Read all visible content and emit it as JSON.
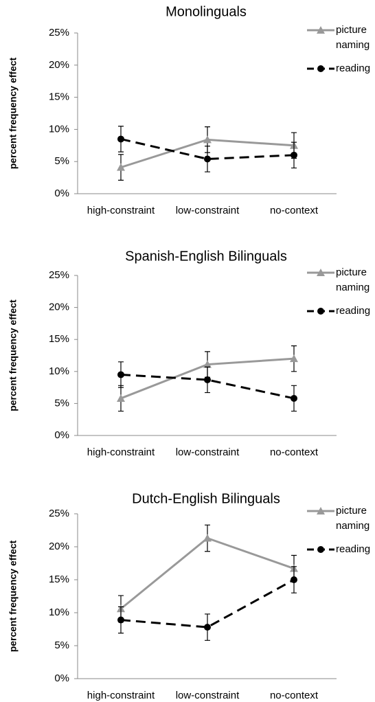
{
  "chart_data": [
    {
      "type": "line",
      "title": "Monolinguals",
      "y_label": "percent frequency effect",
      "categories": [
        "high-constraint",
        "low-constraint",
        "no-context"
      ],
      "ylim": [
        0,
        25
      ],
      "yticks": [
        {
          "value": 0,
          "label": "0%"
        },
        {
          "value": 5,
          "label": "5%"
        },
        {
          "value": 10,
          "label": "10%"
        },
        {
          "value": 15,
          "label": "15%"
        },
        {
          "value": 20,
          "label": "20%"
        },
        {
          "value": 25,
          "label": "25%"
        }
      ],
      "legend": "top-right",
      "series": [
        {
          "name": "picture naming",
          "color": "#999999",
          "marker": "triangle",
          "dashed": false,
          "values": [
            4.1,
            8.4,
            7.5
          ],
          "errors": [
            2,
            2,
            2
          ]
        },
        {
          "name": "reading",
          "color": "#000000",
          "marker": "circle",
          "dashed": true,
          "values": [
            8.5,
            5.4,
            6.0
          ],
          "errors": [
            2,
            2,
            2
          ]
        }
      ]
    },
    {
      "type": "line",
      "title": "Spanish-English Bilinguals",
      "y_label": "percent frequency effect",
      "categories": [
        "high-constraint",
        "low-constraint",
        "no-context"
      ],
      "ylim": [
        0,
        25
      ],
      "yticks": [
        {
          "value": 0,
          "label": "0%"
        },
        {
          "value": 5,
          "label": "5%"
        },
        {
          "value": 10,
          "label": "10%"
        },
        {
          "value": 15,
          "label": "15%"
        },
        {
          "value": 20,
          "label": "20%"
        },
        {
          "value": 25,
          "label": "25%"
        }
      ],
      "legend": "top-right",
      "series": [
        {
          "name": "picture naming",
          "color": "#999999",
          "marker": "triangle",
          "dashed": false,
          "values": [
            5.8,
            11.1,
            12.0
          ],
          "errors": [
            2,
            2,
            2
          ]
        },
        {
          "name": "reading",
          "color": "#000000",
          "marker": "circle",
          "dashed": true,
          "values": [
            9.5,
            8.7,
            5.8
          ],
          "errors": [
            2,
            2,
            2
          ]
        }
      ]
    },
    {
      "type": "line",
      "title": "Dutch-English Bilinguals",
      "y_label": "percent frequency effect",
      "categories": [
        "high-constraint",
        "low-constraint",
        "no-context"
      ],
      "ylim": [
        0,
        25
      ],
      "yticks": [
        {
          "value": 0,
          "label": "0%"
        },
        {
          "value": 5,
          "label": "5%"
        },
        {
          "value": 10,
          "label": "10%"
        },
        {
          "value": 15,
          "label": "15%"
        },
        {
          "value": 20,
          "label": "20%"
        },
        {
          "value": 25,
          "label": "25%"
        }
      ],
      "legend": "top-right",
      "series": [
        {
          "name": "picture naming",
          "color": "#999999",
          "marker": "triangle",
          "dashed": false,
          "values": [
            10.6,
            21.3,
            16.7
          ],
          "errors": [
            2,
            2,
            2
          ]
        },
        {
          "name": "reading",
          "color": "#000000",
          "marker": "circle",
          "dashed": true,
          "values": [
            8.9,
            7.8,
            15.0
          ],
          "errors": [
            2,
            2,
            2
          ]
        }
      ]
    }
  ]
}
